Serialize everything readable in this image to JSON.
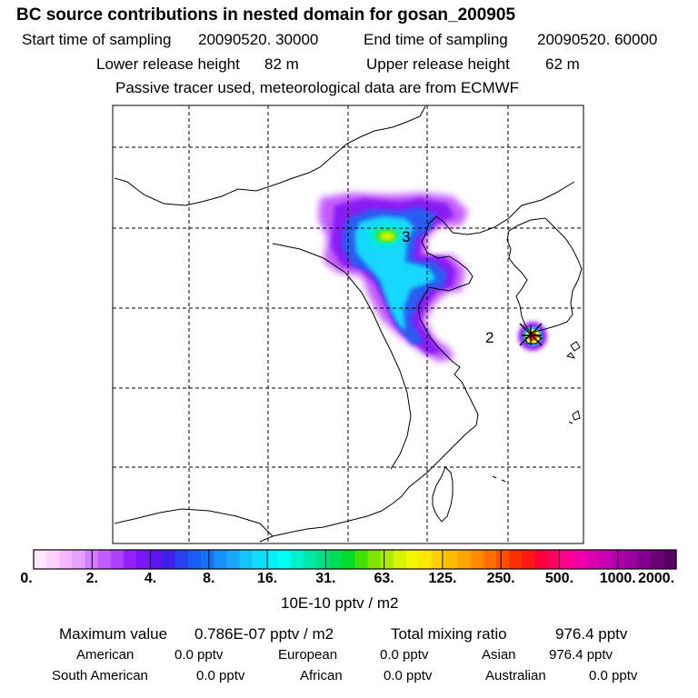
{
  "header": {
    "title": "BC  source contributions in nested domain for gosan_200905",
    "start_label": "Start time of sampling",
    "start_value": "20090520. 30000",
    "end_label": "End time of sampling",
    "end_value": "20090520. 60000",
    "lower_label": "Lower release height",
    "lower_value": "82 m",
    "upper_label": "Upper release height",
    "upper_value": "62 m",
    "note": "Passive tracer used, meteorological data are from ECMWF"
  },
  "map": {
    "markers": [
      {
        "label": "3",
        "place": "Beijing area"
      },
      {
        "label": "2",
        "place": "Gosan, Jeju"
      }
    ]
  },
  "colorbar": {
    "tick_labels": [
      "0.",
      "2.",
      "4.",
      "8.",
      "16.",
      "31.",
      "63.",
      "125.",
      "250.",
      "500.",
      "1000.",
      "2000."
    ],
    "unit": "10E-10 pptv / m2",
    "colors": [
      "#ffe8ff",
      "#ffd2ff",
      "#f5b8ff",
      "#e6a0ff",
      "#d47cff",
      "#c25cff",
      "#b040ff",
      "#9420ff",
      "#7a18f5",
      "#5f14ef",
      "#3f20ea",
      "#2840ee",
      "#1a5cf4",
      "#1474f8",
      "#1890fb",
      "#1aa8fc",
      "#14c4fe",
      "#10ddff",
      "#00f0ff",
      "#00ffee",
      "#00f2cc",
      "#00e8a8",
      "#00e084",
      "#00dd58",
      "#00dd28",
      "#40e000",
      "#80e600",
      "#b0ec00",
      "#d8f200",
      "#f5f500",
      "#ffe400",
      "#ffd000",
      "#ffbc00",
      "#ffa600",
      "#ff8c00",
      "#ff7000",
      "#ff5000",
      "#ff3000",
      "#ff1818",
      "#ff0038",
      "#ff0068",
      "#ff0090",
      "#f000a8",
      "#dc00b0",
      "#c800b0",
      "#b000a8",
      "#9a009c",
      "#82008c",
      "#6c0078",
      "#580066"
    ]
  },
  "stats": {
    "max_label": "Maximum value",
    "max_value": "0.786E-07 pptv / m2",
    "total_label": "Total mixing ratio",
    "total_value": "976.4 pptv",
    "sources": [
      {
        "name": "American",
        "value": "0.0 pptv"
      },
      {
        "name": "European",
        "value": "0.0 pptv"
      },
      {
        "name": "Asian",
        "value": "976.4 pptv"
      },
      {
        "name": "South American",
        "value": "0.0 pptv"
      },
      {
        "name": "African",
        "value": "0.0 pptv"
      },
      {
        "name": "Australian",
        "value": "0.0 pptv"
      }
    ]
  }
}
